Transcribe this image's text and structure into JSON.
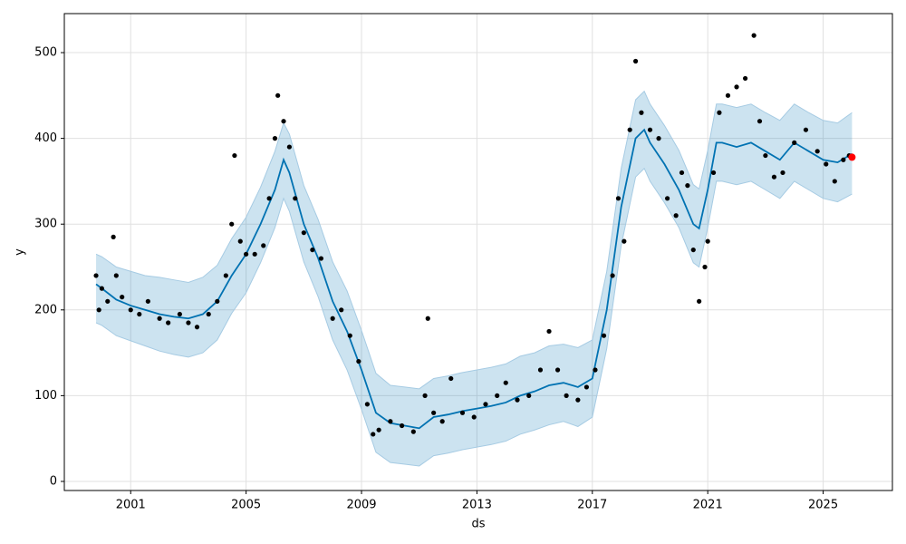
{
  "chart_data": {
    "type": "forecast",
    "xlabel": "ds",
    "ylabel": "y",
    "xlim": [
      1998.7,
      2027.4
    ],
    "ylim": [
      -10.6,
      545.5
    ],
    "xticks": [
      2001,
      2005,
      2009,
      2013,
      2017,
      2021,
      2025
    ],
    "yticks": [
      0,
      100,
      200,
      300,
      400,
      500
    ],
    "grid": true,
    "x": [
      1999.8,
      2000.0,
      2000.5,
      2001.0,
      2001.5,
      2002.0,
      2002.5,
      2003.0,
      2003.5,
      2004.0,
      2004.5,
      2005.0,
      2005.5,
      2006.0,
      2006.3,
      2006.5,
      2007.0,
      2007.5,
      2008.0,
      2008.5,
      2009.0,
      2009.5,
      2010.0,
      2010.5,
      2011.0,
      2011.5,
      2012.0,
      2012.5,
      2013.0,
      2013.5,
      2014.0,
      2014.5,
      2015.0,
      2015.5,
      2016.0,
      2016.5,
      2017.0,
      2017.5,
      2018.0,
      2018.5,
      2018.8,
      2019.0,
      2019.5,
      2020.0,
      2020.5,
      2020.7,
      2021.0,
      2021.3,
      2021.5,
      2022.0,
      2022.5,
      2023.0,
      2023.5,
      2024.0,
      2024.5,
      2025.0,
      2025.5,
      2026.0
    ],
    "series": [
      {
        "type": "bound",
        "color": "#a6cbe3",
        "fill": "#0072b2",
        "fill_opacity": 0.2,
        "values": [
          265,
          262,
          250,
          245,
          240,
          238,
          235,
          232,
          238,
          252,
          283,
          308,
          343,
          385,
          418,
          405,
          345,
          305,
          256,
          222,
          176,
          126,
          112,
          110,
          108,
          120,
          123,
          127,
          130,
          133,
          137,
          146,
          150,
          158,
          160,
          156,
          165,
          245,
          365,
          445,
          455,
          440,
          415,
          386,
          346,
          341,
          386,
          440,
          440,
          436,
          440,
          430,
          421,
          440,
          430,
          421,
          418,
          430
        ]
      },
      {
        "type": "bound",
        "color": "#a6cbe3",
        "values": [
          185,
          182,
          170,
          164,
          158,
          152,
          148,
          145,
          150,
          165,
          196,
          220,
          255,
          296,
          330,
          315,
          256,
          215,
          165,
          130,
          84,
          34,
          22,
          20,
          18,
          30,
          33,
          37,
          40,
          43,
          47,
          55,
          60,
          66,
          70,
          64,
          75,
          155,
          275,
          355,
          365,
          350,
          325,
          296,
          255,
          250,
          296,
          350,
          350,
          346,
          350,
          340,
          330,
          350,
          340,
          330,
          326,
          335
        ]
      },
      {
        "type": "line",
        "color": "#0072b2",
        "values": [
          230,
          225,
          212,
          205,
          200,
          195,
          192,
          190,
          195,
          210,
          240,
          265,
          300,
          340,
          375,
          360,
          300,
          260,
          210,
          175,
          130,
          80,
          68,
          65,
          62,
          75,
          78,
          82,
          85,
          88,
          92,
          100,
          105,
          112,
          115,
          110,
          120,
          200,
          320,
          400,
          410,
          395,
          370,
          340,
          300,
          295,
          340,
          395,
          395,
          390,
          395,
          385,
          375,
          395,
          385,
          375,
          372,
          382
        ]
      },
      {
        "type": "scatter",
        "color": "#000000",
        "x": [
          1999.8,
          1999.9,
          2000.0,
          2000.2,
          2000.4,
          2000.5,
          2000.7,
          2001.0,
          2001.3,
          2001.6,
          2002.0,
          2002.3,
          2002.7,
          2003.0,
          2003.3,
          2003.7,
          2004.0,
          2004.3,
          2004.5,
          2004.6,
          2004.8,
          2005.0,
          2005.3,
          2005.6,
          2005.8,
          2006.0,
          2006.1,
          2006.3,
          2006.5,
          2006.7,
          2007.0,
          2007.3,
          2007.6,
          2008.0,
          2008.3,
          2008.6,
          2008.9,
          2009.2,
          2009.4,
          2009.6,
          2010.0,
          2010.4,
          2010.8,
          2011.2,
          2011.3,
          2011.5,
          2011.8,
          2012.1,
          2012.5,
          2012.9,
          2013.3,
          2013.7,
          2014.0,
          2014.4,
          2014.8,
          2015.2,
          2015.5,
          2015.8,
          2016.1,
          2016.5,
          2016.8,
          2017.1,
          2017.4,
          2017.7,
          2017.9,
          2018.1,
          2018.3,
          2018.5,
          2018.7,
          2019.0,
          2019.3,
          2019.6,
          2019.9,
          2020.1,
          2020.3,
          2020.5,
          2020.7,
          2020.9,
          2021.0,
          2021.2,
          2021.4,
          2021.7,
          2022.0,
          2022.3,
          2022.6,
          2022.8,
          2023.0,
          2023.3,
          2023.6,
          2024.0,
          2024.4,
          2024.8,
          2025.1,
          2025.4,
          2025.7,
          2025.9
        ],
        "values": [
          240,
          200,
          225,
          210,
          285,
          240,
          215,
          200,
          195,
          210,
          190,
          185,
          195,
          185,
          180,
          195,
          210,
          240,
          300,
          380,
          280,
          265,
          265,
          275,
          330,
          400,
          450,
          420,
          390,
          330,
          290,
          270,
          260,
          190,
          200,
          170,
          140,
          90,
          55,
          60,
          70,
          65,
          58,
          100,
          190,
          80,
          70,
          120,
          80,
          75,
          90,
          100,
          115,
          95,
          100,
          130,
          175,
          130,
          100,
          95,
          110,
          130,
          170,
          240,
          330,
          280,
          410,
          490,
          430,
          410,
          400,
          330,
          310,
          360,
          345,
          270,
          210,
          250,
          280,
          360,
          430,
          450,
          460,
          470,
          520,
          420,
          380,
          355,
          360,
          395,
          410,
          385,
          370,
          350,
          375,
          380
        ]
      },
      {
        "type": "scatter",
        "color": "#ff0000",
        "x": [
          2026.0
        ],
        "values": [
          378
        ]
      }
    ]
  }
}
